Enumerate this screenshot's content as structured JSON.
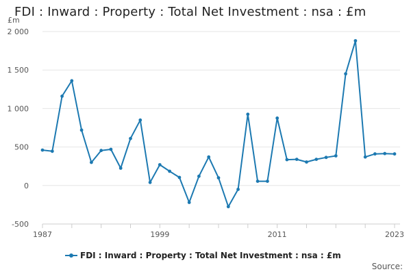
{
  "title": "FDI : Inward : Property : Total Net Investment : nsa : £m",
  "source_label": "Source:",
  "colors": {
    "series": "#1c79b1",
    "grid": "#e6e6e6",
    "axis": "#cccccc"
  },
  "chart_data": {
    "type": "line",
    "title": "FDI : Inward : Property : Total Net Investment : nsa : £m",
    "ylabel": "£m",
    "ylim": [
      -500,
      2000
    ],
    "yticks": [
      -500,
      0,
      500,
      1000,
      1500,
      2000
    ],
    "ytick_labels": [
      "-500",
      "0",
      "500",
      "1 000",
      "1 500",
      "2 000"
    ],
    "xlim": [
      1987,
      2023
    ],
    "xticks": [
      1987,
      1999,
      2011,
      2023
    ],
    "xtick_labels": [
      "1987",
      "1999",
      "2011",
      "2023"
    ],
    "grid": true,
    "legend_position": "bottom",
    "series": [
      {
        "name": "FDI : Inward : Property : Total Net Investment : nsa : £m",
        "x": [
          1987,
          1988,
          1989,
          1990,
          1991,
          1992,
          1993,
          1994,
          1995,
          1996,
          1997,
          1998,
          1999,
          2000,
          2001,
          2002,
          2003,
          2004,
          2005,
          2006,
          2007,
          2008,
          2009,
          2010,
          2011,
          2012,
          2013,
          2014,
          2015,
          2016,
          2017,
          2018,
          2019,
          2020,
          2021,
          2022,
          2023
        ],
        "values": [
          460,
          445,
          1160,
          1360,
          720,
          300,
          455,
          470,
          225,
          610,
          850,
          40,
          270,
          185,
          105,
          -220,
          120,
          370,
          100,
          -275,
          -50,
          925,
          55,
          55,
          875,
          335,
          340,
          305,
          340,
          365,
          385,
          1450,
          1880,
          370,
          410,
          415,
          410
        ]
      }
    ]
  }
}
